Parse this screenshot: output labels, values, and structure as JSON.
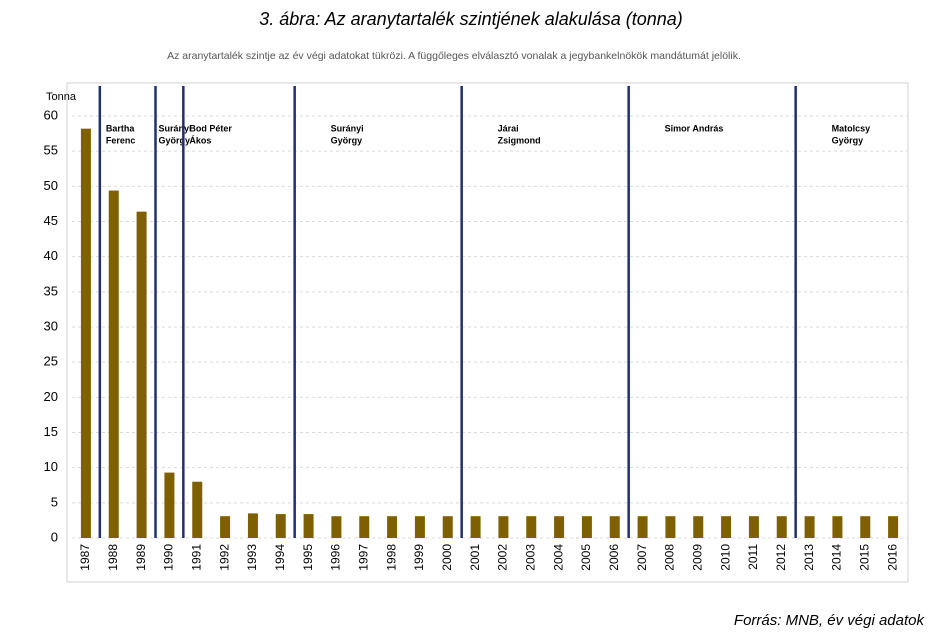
{
  "chart_data": {
    "type": "bar",
    "title": "3.   ábra: Az aranytartalék szintjének alakulása (tonna)",
    "subtitle": "Az aranytartalék szintje az év végi adatokat tükrözi. A függőleges elválasztó vonalak a jegybankelnökök mandátumát jelölik.",
    "y_label": "Tonna",
    "source": "Forrás: MNB, év végi adatok",
    "categories": [
      "1987",
      "1988",
      "1989",
      "1990",
      "1991",
      "1992",
      "1993",
      "1994",
      "1995",
      "1996",
      "1997",
      "1998",
      "1999",
      "2000",
      "2001",
      "2002",
      "2003",
      "2004",
      "2005",
      "2006",
      "2007",
      "2008",
      "2009",
      "2010",
      "2011",
      "2012",
      "2013",
      "2014",
      "2015",
      "2016"
    ],
    "values": [
      58.2,
      49.4,
      46.4,
      9.3,
      8.0,
      3.1,
      3.5,
      3.4,
      3.4,
      3.1,
      3.1,
      3.1,
      3.1,
      3.1,
      3.1,
      3.1,
      3.1,
      3.1,
      3.1,
      3.1,
      3.1,
      3.1,
      3.1,
      3.1,
      3.1,
      3.1,
      3.1,
      3.1,
      3.1,
      3.1
    ],
    "color": "#7f6000",
    "divider_color": "#1f3070",
    "ylim": [
      0,
      60
    ],
    "yticks": [
      0,
      5,
      10,
      15,
      20,
      25,
      30,
      35,
      40,
      45,
      50,
      55,
      60
    ],
    "grid": true,
    "governors": [
      {
        "name": [
          "Bartha",
          "Ferenc"
        ],
        "start": "1988"
      },
      {
        "name": [
          "Surányi",
          "György"
        ],
        "start": "1990"
      },
      {
        "name": [
          "Bod Péter",
          "Ákos"
        ],
        "start": "1991"
      },
      {
        "name": [
          "Surányi",
          "György"
        ],
        "start": "1995"
      },
      {
        "name": [
          "Járai",
          "Zsigmond"
        ],
        "start": "2001"
      },
      {
        "name": [
          "Simor András"
        ],
        "start": "2007"
      },
      {
        "name": [
          "Matolcsy",
          "György"
        ],
        "start": "2013"
      }
    ]
  }
}
